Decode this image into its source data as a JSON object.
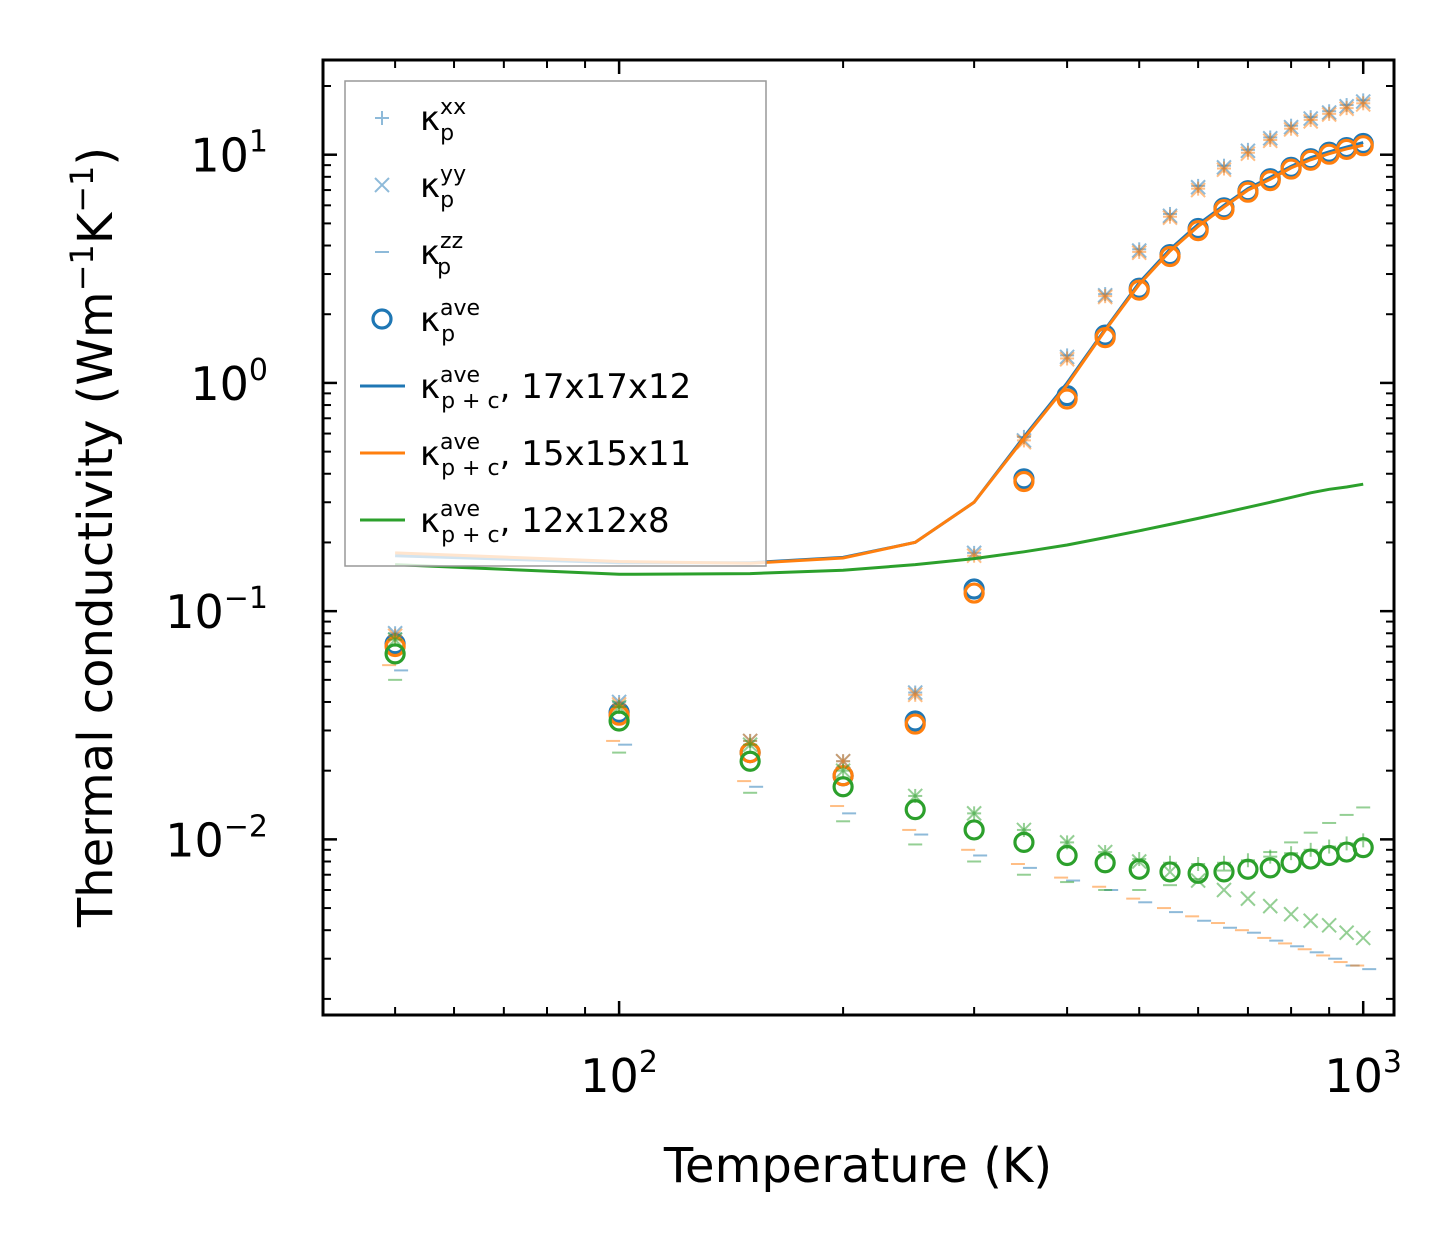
{
  "chart_data": {
    "type": "scatter",
    "xlabel": "Temperature (K)",
    "ylabel": "Thermal conductivity (Wm",
    "ylabel_parts": [
      "Thermal conductivity (Wm",
      "−1",
      "K",
      "−1",
      ")"
    ],
    "xscale": "log",
    "yscale": "log",
    "xlim": [
      40,
      1100
    ],
    "ylim": [
      0.0017,
      26
    ],
    "x_ticks": [
      {
        "value": 100,
        "base": "10",
        "exp": "2"
      },
      {
        "value": 1000,
        "base": "10",
        "exp": "3"
      }
    ],
    "y_ticks": [
      {
        "value": 0.01,
        "base": "10",
        "exp": "−2"
      },
      {
        "value": 0.1,
        "base": "10",
        "exp": "−1"
      },
      {
        "value": 1,
        "base": "10",
        "exp": "0"
      },
      {
        "value": 10,
        "base": "10",
        "exp": "1"
      }
    ],
    "legend_position": "upper-left",
    "legend": [
      {
        "marker": "plus",
        "label": "κ",
        "sub": "p",
        "sup": "xx",
        "suffix": ""
      },
      {
        "marker": "x",
        "label": "κ",
        "sub": "p",
        "sup": "yy",
        "suffix": ""
      },
      {
        "marker": "dash",
        "label": "κ",
        "sub": "p",
        "sup": "zz",
        "suffix": ""
      },
      {
        "marker": "circle",
        "label": "κ",
        "sub": "p",
        "sup": "ave",
        "suffix": ""
      },
      {
        "marker": "line-blue",
        "label": "κ",
        "sub": "p + c",
        "sup": "ave",
        "suffix": ", 17x17x12"
      },
      {
        "marker": "line-orange",
        "label": "κ",
        "sub": "p + c",
        "sup": "ave",
        "suffix": ", 15x15x11"
      },
      {
        "marker": "line-green",
        "label": "κ",
        "sub": "p + c",
        "sup": "ave",
        "suffix": ", 12x12x8"
      }
    ],
    "colors": {
      "blue": "#1f77b4",
      "orange": "#ff7f0e",
      "green": "#2ca02c"
    },
    "x": [
      50,
      100,
      150,
      200,
      250,
      300,
      350,
      400,
      450,
      500,
      550,
      600,
      650,
      700,
      750,
      800,
      850,
      900,
      950,
      1000
    ],
    "series": [
      {
        "name": "17x17x12",
        "color": "#1f77b4",
        "line": [
          0.175,
          0.163,
          0.163,
          0.172,
          0.2,
          0.3,
          0.58,
          1.0,
          1.72,
          2.75,
          3.85,
          4.95,
          6.0,
          7.1,
          7.95,
          8.9,
          9.7,
          10.3,
          10.8,
          11.3
        ],
        "ave": [
          0.072,
          0.036,
          0.024,
          0.019,
          0.033,
          0.125,
          0.38,
          0.88,
          1.62,
          2.6,
          3.65,
          4.75,
          5.85,
          6.95,
          7.85,
          8.8,
          9.6,
          10.25,
          10.75,
          11.2
        ],
        "xx": [
          0.08,
          0.04,
          0.027,
          0.022,
          0.044,
          0.18,
          0.58,
          1.32,
          2.45,
          3.85,
          5.5,
          7.3,
          8.95,
          10.5,
          11.9,
          13.4,
          14.6,
          15.5,
          16.5,
          17.3
        ],
        "yy": [
          0.08,
          0.04,
          0.027,
          0.022,
          0.044,
          0.18,
          0.56,
          1.3,
          2.42,
          3.8,
          5.4,
          7.2,
          8.8,
          10.4,
          11.8,
          13.2,
          14.4,
          15.3,
          16.3,
          17.1
        ],
        "zz": [
          0.055,
          0.026,
          0.017,
          0.013,
          0.0105,
          0.0085,
          0.0075,
          0.0066,
          0.006,
          0.0053,
          0.0048,
          0.0044,
          0.0041,
          0.0039,
          0.0036,
          0.0034,
          0.0032,
          0.003,
          0.0028,
          0.0027
        ]
      },
      {
        "name": "15x15x11",
        "color": "#ff7f0e",
        "line": [
          0.18,
          0.165,
          0.162,
          0.171,
          0.2,
          0.3,
          0.57,
          0.98,
          1.7,
          2.7,
          3.78,
          4.85,
          5.9,
          7.0,
          7.8,
          8.75,
          9.5,
          10.1,
          10.6,
          11.0
        ],
        "ave": [
          0.07,
          0.035,
          0.024,
          0.019,
          0.032,
          0.12,
          0.37,
          0.85,
          1.58,
          2.55,
          3.58,
          4.65,
          5.75,
          6.85,
          7.7,
          8.65,
          9.45,
          10.05,
          10.55,
          10.95
        ],
        "xx": [
          0.078,
          0.039,
          0.027,
          0.022,
          0.043,
          0.175,
          0.56,
          1.28,
          2.4,
          3.75,
          5.35,
          7.1,
          8.7,
          10.2,
          11.6,
          13.0,
          14.2,
          15.1,
          16.0,
          16.8
        ],
        "yy": [
          0.078,
          0.039,
          0.027,
          0.022,
          0.043,
          0.175,
          0.55,
          1.27,
          2.38,
          3.72,
          5.3,
          7.0,
          8.6,
          10.1,
          11.5,
          12.9,
          14.0,
          15.0,
          15.9,
          16.6
        ],
        "zz": [
          0.058,
          0.027,
          0.018,
          0.014,
          0.011,
          0.009,
          0.0078,
          0.0068,
          0.0062,
          0.0055,
          0.005,
          0.0046,
          0.0043,
          0.004,
          0.0037,
          0.0035,
          0.0033,
          0.0031,
          0.0029,
          0.0028
        ]
      },
      {
        "name": "12x12x8",
        "color": "#2ca02c",
        "line": [
          0.16,
          0.145,
          0.146,
          0.151,
          0.16,
          0.17,
          0.182,
          0.195,
          0.21,
          0.225,
          0.24,
          0.255,
          0.27,
          0.285,
          0.3,
          0.315,
          0.33,
          0.342,
          0.35,
          0.36
        ],
        "ave": [
          0.065,
          0.033,
          0.022,
          0.017,
          0.0135,
          0.011,
          0.0097,
          0.0085,
          0.0079,
          0.0074,
          0.0072,
          0.0071,
          0.0072,
          0.0074,
          0.0075,
          0.0079,
          0.0082,
          0.0085,
          0.0088,
          0.0092
        ],
        "xx": [
          0.075,
          0.038,
          0.026,
          0.02,
          0.0155,
          0.013,
          0.011,
          0.0097,
          0.0088,
          0.0082,
          0.0079,
          0.0078,
          0.0079,
          0.0081,
          0.0084,
          0.0087,
          0.009,
          0.0093,
          0.0096,
          0.0099
        ],
        "yy": [
          0.075,
          0.038,
          0.026,
          0.02,
          0.0155,
          0.013,
          0.011,
          0.0097,
          0.0088,
          0.008,
          0.0072,
          0.0066,
          0.006,
          0.0055,
          0.0051,
          0.0047,
          0.0044,
          0.0042,
          0.0039,
          0.0037
        ],
        "zz": [
          0.05,
          0.024,
          0.016,
          0.012,
          0.0095,
          0.008,
          0.007,
          0.0065,
          0.006,
          0.006,
          0.0063,
          0.0067,
          0.0073,
          0.008,
          0.0088,
          0.0097,
          0.0107,
          0.0118,
          0.0128,
          0.0138
        ]
      }
    ]
  }
}
